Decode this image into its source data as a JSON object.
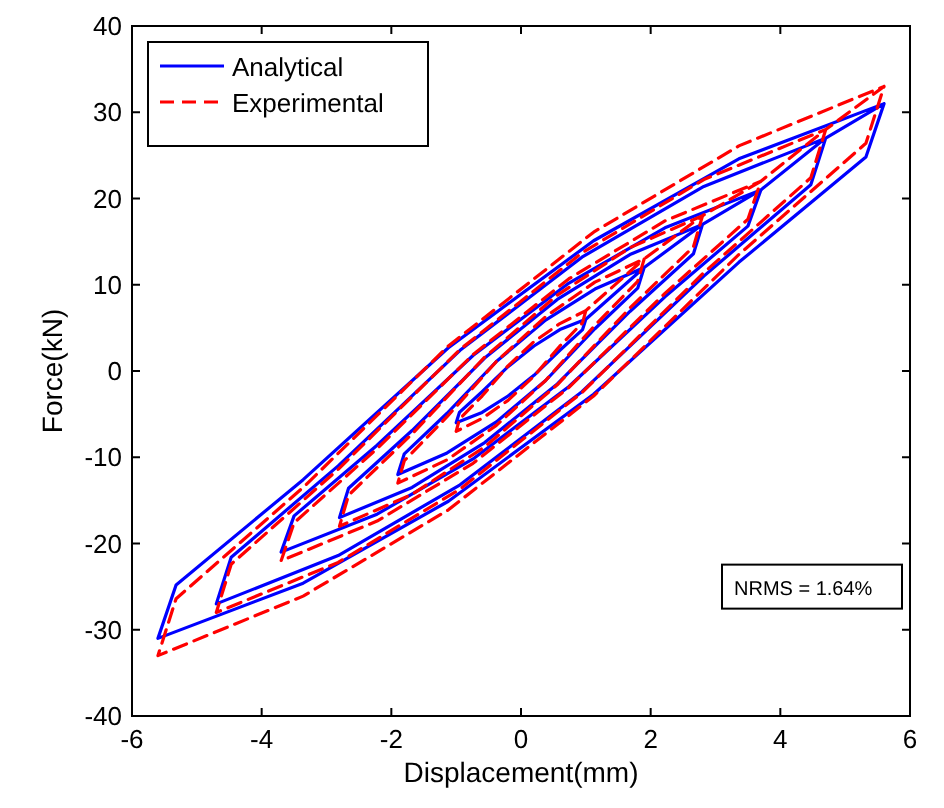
{
  "chart_data": {
    "type": "line",
    "xlabel": "Displacement(mm)",
    "ylabel": "Force(kN)",
    "xlim": [
      -6,
      6
    ],
    "xticks": [
      -6,
      -4,
      -2,
      0,
      2,
      4,
      6
    ],
    "ylim": [
      -40,
      40
    ],
    "yticks": [
      -40,
      -30,
      -20,
      -10,
      0,
      10,
      20,
      30,
      40
    ],
    "grid": false,
    "legend": "top left",
    "marker": "none",
    "annotations": [
      "NRMS = 1.64%"
    ],
    "series": [
      {
        "name": "Analytical",
        "color": "#0000ff",
        "line_style": "solid",
        "x": [
          1,
          0.95,
          0.6,
          0.2,
          -0.2,
          -0.6,
          -1,
          -0.95,
          -0.6,
          -0.2,
          0.2,
          0.6,
          1,
          1.9,
          1.8,
          1.14,
          0.38,
          -0.38,
          -1.14,
          -1.9,
          -1.8,
          -1.14,
          -0.38,
          0.38,
          1.14,
          1.9,
          2.8,
          2.66,
          1.68,
          0.56,
          -0.56,
          -1.68,
          -2.8,
          -2.66,
          -1.68,
          -0.56,
          0.56,
          1.68,
          2.8,
          3.7,
          3.5,
          2.22,
          0.74,
          -0.74,
          -2.22,
          -3.7,
          -3.5,
          -2.22,
          -0.74,
          0.74,
          2.22,
          3.7,
          4.7,
          4.47,
          2.82,
          0.94,
          -0.94,
          -2.82,
          -4.7,
          -4.47,
          -2.82,
          -0.94,
          0.94,
          2.82,
          4.7,
          5.6,
          5.32,
          3.36,
          1.12,
          -1.12,
          -3.36,
          -5.6,
          -5.32,
          -3.36,
          -1.12,
          1.12,
          3.36,
          5.6
        ],
        "values": [
          6,
          4.8,
          2.4,
          -0.5,
          -2.9,
          -4.8,
          -6,
          -4.8,
          -2.4,
          0.5,
          2.9,
          4.8,
          6,
          12,
          9.6,
          4.9,
          -1.1,
          -5.9,
          -9.5,
          -12,
          -9.6,
          -4.9,
          1.1,
          5.9,
          9.5,
          12,
          17,
          13.6,
          6.9,
          -1.5,
          -8.3,
          -13.5,
          -17,
          -13.6,
          -6.9,
          1.5,
          8.3,
          13.5,
          17,
          21,
          16.8,
          8.6,
          -1.8,
          -10.2,
          -16.6,
          -21,
          -16.8,
          -8.6,
          1.8,
          10.2,
          16.6,
          21,
          27,
          21.6,
          11,
          -2.4,
          -13.2,
          -21.4,
          -27,
          -21.6,
          -11,
          2.4,
          13.2,
          21.4,
          27,
          31,
          24.8,
          12.6,
          -2.7,
          -15.1,
          -24.6,
          -31,
          -24.8,
          -12.6,
          2.7,
          15.1,
          24.6,
          31
        ]
      },
      {
        "name": "Experimental",
        "color": "#ff0000",
        "line_style": "dashed",
        "x": [
          1,
          0.95,
          0.6,
          0.2,
          -0.2,
          -0.6,
          -1,
          -0.95,
          -0.6,
          -0.2,
          0.2,
          0.6,
          1,
          1.9,
          1.8,
          1.14,
          0.38,
          -0.38,
          -1.14,
          -1.9,
          -1.8,
          -1.14,
          -0.38,
          0.38,
          1.14,
          1.9,
          2.8,
          2.66,
          1.68,
          0.56,
          -0.56,
          -1.68,
          -2.8,
          -2.66,
          -1.68,
          -0.56,
          0.56,
          1.68,
          2.8,
          3.7,
          3.5,
          2.22,
          0.74,
          -0.74,
          -2.22,
          -3.7,
          -3.5,
          -2.22,
          -0.74,
          0.74,
          2.22,
          3.7,
          4.7,
          4.47,
          2.82,
          0.94,
          -0.94,
          -2.82,
          -4.7,
          -4.47,
          -2.82,
          -0.94,
          0.94,
          2.82,
          4.7,
          5.6,
          5.32,
          3.36,
          1.12,
          -1.12,
          -3.36,
          -5.6,
          -5.32,
          -3.36,
          -1.12,
          1.12,
          3.36,
          5.6
        ],
        "values": [
          7,
          5.6,
          2.9,
          -0.6,
          -3.4,
          -5.5,
          -7,
          -5.6,
          -2.9,
          0.6,
          3.4,
          5.5,
          7,
          13,
          10.4,
          5.3,
          -1.1,
          -6.3,
          -10.3,
          -13,
          -10.4,
          -5.3,
          1.1,
          6.3,
          10.3,
          13,
          18,
          14.4,
          7.3,
          -1.6,
          -8.8,
          -14.3,
          -18,
          -14.4,
          -7.3,
          1.6,
          8.8,
          14.3,
          18,
          22,
          17.6,
          9,
          -1.9,
          -10.7,
          -17.4,
          -22,
          -17.6,
          -9,
          1.9,
          10.7,
          17.4,
          22,
          28,
          22.4,
          11.4,
          -2.5,
          -13.7,
          -22.2,
          -28,
          -22.4,
          -11.4,
          2.5,
          13.7,
          22.2,
          28,
          33,
          26.4,
          13.5,
          -2.9,
          -16.1,
          -26.1,
          -33,
          -26.4,
          -13.5,
          2.9,
          16.1,
          26.1,
          33
        ]
      }
    ]
  }
}
